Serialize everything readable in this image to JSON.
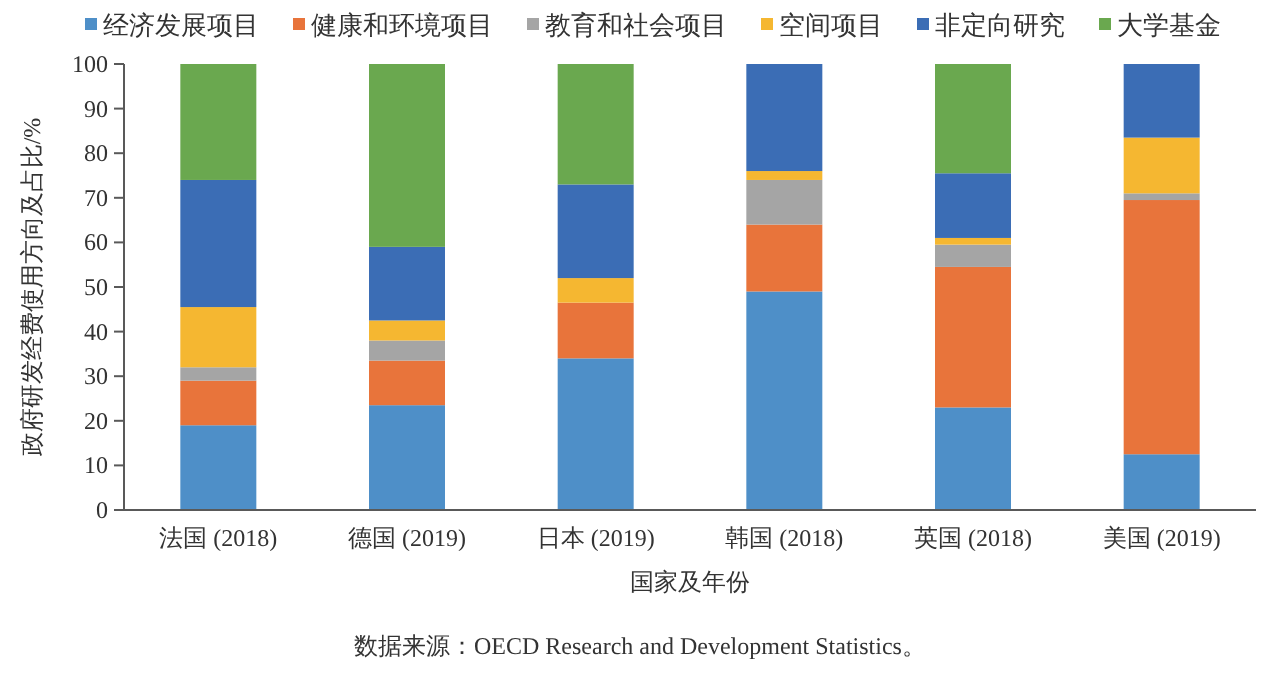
{
  "chart_data": {
    "type": "bar",
    "stacked": true,
    "xlabel": "国家及年份",
    "ylabel": "政府研发经费使用方向及占比/%",
    "categories": [
      "法国 (2018)",
      "德国 (2019)",
      "日本 (2019)",
      "韩国 (2018)",
      "英国 (2018)",
      "美国 (2019)"
    ],
    "series": [
      {
        "name": "经济发展项目",
        "color": "#4e8fc8",
        "values": [
          19,
          23.5,
          34,
          49,
          23,
          12.5
        ]
      },
      {
        "name": "健康和环境项目",
        "color": "#e8743b",
        "values": [
          10,
          10,
          12.5,
          15,
          31.5,
          57
        ]
      },
      {
        "name": "教育和社会项目",
        "color": "#a5a5a5",
        "values": [
          3,
          4.5,
          0,
          10,
          5,
          1.5
        ]
      },
      {
        "name": "空间项目",
        "color": "#f5b731",
        "values": [
          13.5,
          4.5,
          5.5,
          2,
          1.5,
          12.5
        ]
      },
      {
        "name": "非定向研究",
        "color": "#3b6db5",
        "values": [
          28.5,
          16.5,
          21,
          24,
          14.5,
          16.5
        ]
      },
      {
        "name": "大学基金",
        "color": "#6aa84f",
        "values": [
          26,
          41,
          27,
          0,
          24.5,
          0
        ]
      }
    ],
    "ylim": [
      0,
      100
    ],
    "yticks": [
      0,
      10,
      20,
      30,
      40,
      50,
      60,
      70,
      80,
      90,
      100
    ],
    "legend": "top",
    "annotations": [
      "数据来源：OECD Research and Development Statistics。"
    ]
  }
}
